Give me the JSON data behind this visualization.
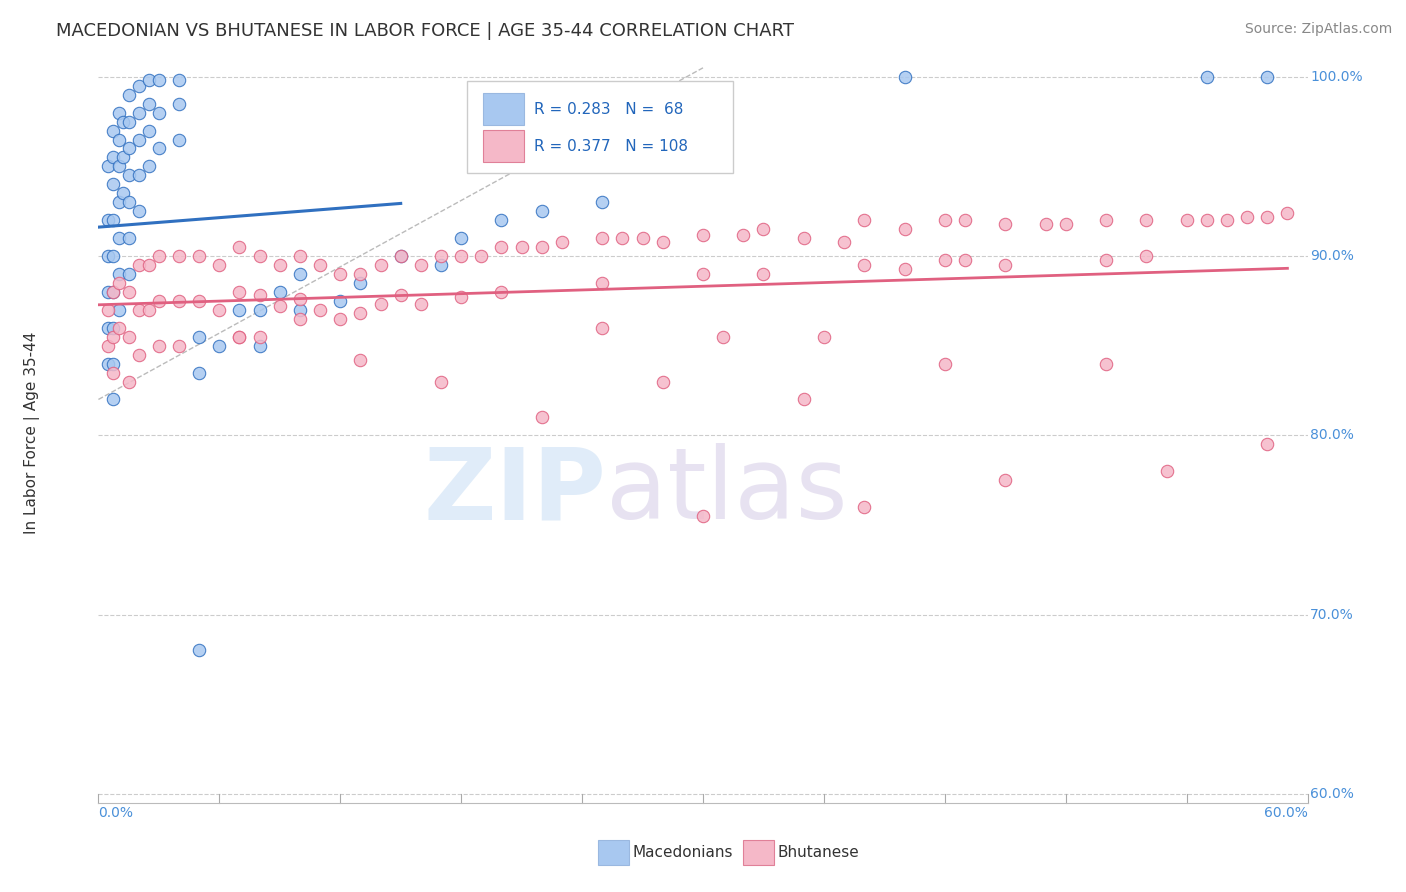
{
  "title": "MACEDONIAN VS BHUTANESE IN LABOR FORCE | AGE 35-44 CORRELATION CHART",
  "source": "Source: ZipAtlas.com",
  "ylabel_label": "In Labor Force | Age 35-44",
  "blue_color": "#a8c8f0",
  "pink_color": "#f5b8c8",
  "blue_line_color": "#3070c0",
  "pink_line_color": "#e06080",
  "xlim": [
    0.0,
    0.6
  ],
  "ylim": [
    0.595,
    1.008
  ],
  "blue_x": [
    0.005,
    0.005,
    0.005,
    0.005,
    0.005,
    0.005,
    0.007,
    0.007,
    0.007,
    0.007,
    0.007,
    0.007,
    0.007,
    0.007,
    0.007,
    0.01,
    0.01,
    0.01,
    0.01,
    0.01,
    0.01,
    0.01,
    0.012,
    0.012,
    0.012,
    0.015,
    0.015,
    0.015,
    0.015,
    0.015,
    0.015,
    0.015,
    0.02,
    0.02,
    0.02,
    0.02,
    0.02,
    0.025,
    0.025,
    0.025,
    0.025,
    0.03,
    0.03,
    0.03,
    0.04,
    0.04,
    0.04,
    0.05,
    0.05,
    0.06,
    0.07,
    0.08,
    0.08,
    0.09,
    0.1,
    0.1,
    0.12,
    0.13,
    0.15,
    0.17,
    0.18,
    0.2,
    0.22,
    0.25,
    0.4,
    0.55,
    0.58,
    0.05
  ],
  "blue_y": [
    0.95,
    0.92,
    0.9,
    0.88,
    0.86,
    0.84,
    0.97,
    0.955,
    0.94,
    0.92,
    0.9,
    0.88,
    0.86,
    0.84,
    0.82,
    0.98,
    0.965,
    0.95,
    0.93,
    0.91,
    0.89,
    0.87,
    0.975,
    0.955,
    0.935,
    0.99,
    0.975,
    0.96,
    0.945,
    0.93,
    0.91,
    0.89,
    0.995,
    0.98,
    0.965,
    0.945,
    0.925,
    0.998,
    0.985,
    0.97,
    0.95,
    0.998,
    0.98,
    0.96,
    0.998,
    0.985,
    0.965,
    0.855,
    0.835,
    0.85,
    0.87,
    0.87,
    0.85,
    0.88,
    0.89,
    0.87,
    0.875,
    0.885,
    0.9,
    0.895,
    0.91,
    0.92,
    0.925,
    0.93,
    1.0,
    1.0,
    1.0,
    0.68
  ],
  "pink_x": [
    0.005,
    0.005,
    0.007,
    0.007,
    0.007,
    0.01,
    0.01,
    0.015,
    0.015,
    0.015,
    0.02,
    0.02,
    0.02,
    0.025,
    0.025,
    0.03,
    0.03,
    0.03,
    0.04,
    0.04,
    0.04,
    0.05,
    0.05,
    0.06,
    0.06,
    0.07,
    0.07,
    0.07,
    0.08,
    0.08,
    0.08,
    0.09,
    0.09,
    0.1,
    0.1,
    0.11,
    0.11,
    0.12,
    0.12,
    0.13,
    0.13,
    0.14,
    0.14,
    0.15,
    0.15,
    0.16,
    0.16,
    0.17,
    0.18,
    0.18,
    0.19,
    0.2,
    0.2,
    0.21,
    0.22,
    0.23,
    0.25,
    0.25,
    0.26,
    0.27,
    0.28,
    0.3,
    0.3,
    0.32,
    0.33,
    0.33,
    0.35,
    0.37,
    0.38,
    0.38,
    0.4,
    0.4,
    0.42,
    0.42,
    0.43,
    0.43,
    0.45,
    0.45,
    0.47,
    0.48,
    0.5,
    0.5,
    0.52,
    0.52,
    0.54,
    0.55,
    0.56,
    0.57,
    0.58,
    0.59,
    0.17,
    0.22,
    0.28,
    0.35,
    0.42,
    0.36,
    0.5,
    0.25,
    0.31,
    0.1,
    0.13,
    0.07,
    0.2,
    0.3,
    0.38,
    0.45,
    0.53,
    0.58
  ],
  "pink_y": [
    0.87,
    0.85,
    0.88,
    0.855,
    0.835,
    0.885,
    0.86,
    0.88,
    0.855,
    0.83,
    0.895,
    0.87,
    0.845,
    0.895,
    0.87,
    0.9,
    0.875,
    0.85,
    0.9,
    0.875,
    0.85,
    0.9,
    0.875,
    0.895,
    0.87,
    0.905,
    0.88,
    0.855,
    0.9,
    0.878,
    0.855,
    0.895,
    0.872,
    0.9,
    0.876,
    0.895,
    0.87,
    0.89,
    0.865,
    0.89,
    0.868,
    0.895,
    0.873,
    0.9,
    0.878,
    0.895,
    0.873,
    0.9,
    0.9,
    0.877,
    0.9,
    0.905,
    0.88,
    0.905,
    0.905,
    0.908,
    0.91,
    0.885,
    0.91,
    0.91,
    0.908,
    0.912,
    0.89,
    0.912,
    0.915,
    0.89,
    0.91,
    0.908,
    0.92,
    0.895,
    0.915,
    0.893,
    0.92,
    0.898,
    0.92,
    0.898,
    0.918,
    0.895,
    0.918,
    0.918,
    0.92,
    0.898,
    0.92,
    0.9,
    0.92,
    0.92,
    0.92,
    0.922,
    0.922,
    0.924,
    0.83,
    0.81,
    0.83,
    0.82,
    0.84,
    0.855,
    0.84,
    0.86,
    0.855,
    0.865,
    0.842,
    0.855,
    0.958,
    0.755,
    0.76,
    0.775,
    0.78,
    0.795
  ],
  "title_fontsize": 13,
  "source_fontsize": 10,
  "ylabel_fontsize": 11
}
